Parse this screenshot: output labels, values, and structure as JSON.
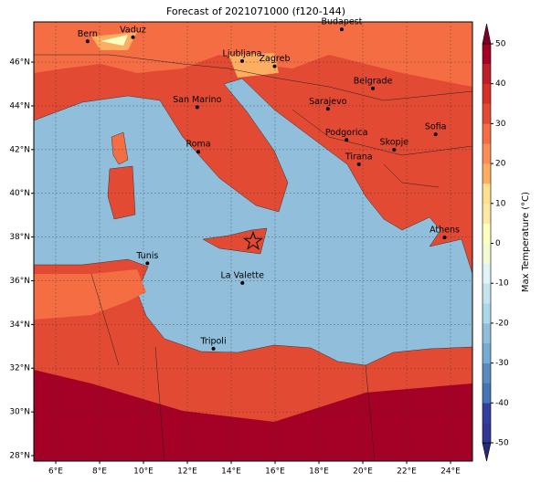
{
  "chart_data": {
    "type": "map",
    "title": "Forecast of 2021071000 (f120-144)",
    "colorbar_label": "Max Temperature (°C)",
    "xlim": [
      5,
      25
    ],
    "ylim": [
      27.75,
      47.84
    ],
    "xticks": [
      {
        "value": 6,
        "label": "6°E"
      },
      {
        "value": 8,
        "label": "8°E"
      },
      {
        "value": 10,
        "label": "10°E"
      },
      {
        "value": 12,
        "label": "12°E"
      },
      {
        "value": 14,
        "label": "14°E"
      },
      {
        "value": 16,
        "label": "16°E"
      },
      {
        "value": 18,
        "label": "18°E"
      },
      {
        "value": 20,
        "label": "20°E"
      },
      {
        "value": 22,
        "label": "22°E"
      },
      {
        "value": 24,
        "label": "24°E"
      }
    ],
    "yticks": [
      {
        "value": 28,
        "label": "28°N"
      },
      {
        "value": 30,
        "label": "30°N"
      },
      {
        "value": 32,
        "label": "32°N"
      },
      {
        "value": 34,
        "label": "34°N"
      },
      {
        "value": 36,
        "label": "36°N"
      },
      {
        "value": 38,
        "label": "38°N"
      },
      {
        "value": 40,
        "label": "40°N"
      },
      {
        "value": 42,
        "label": "42°N"
      },
      {
        "value": 44,
        "label": "44°N"
      },
      {
        "value": 46,
        "label": "46°N"
      }
    ],
    "grid": true,
    "cbar_lim": [
      -50,
      50
    ],
    "cbar_ticks": [
      -50,
      -40,
      -30,
      -20,
      -10,
      0,
      10,
      20,
      30,
      40,
      50
    ],
    "colors": [
      "#313695",
      "#343e9c",
      "#4575b4",
      "#5b8ac0",
      "#74add1",
      "#91bfdb",
      "#abd9e9",
      "#c6e4ef",
      "#e0f3f8",
      "#f4fbd2",
      "#ffffbf",
      "#fee8a5",
      "#fee090",
      "#fdae61",
      "#fc8d59",
      "#f46d43",
      "#e34a33",
      "#d73027",
      "#bd1f2a",
      "#a50026"
    ],
    "under_color": "#262a7a",
    "over_color": "#7f0024",
    "cities": [
      {
        "name": "Bern",
        "lon": 7.45,
        "lat": 46.95
      },
      {
        "name": "Vaduz",
        "lon": 9.52,
        "lat": 47.14
      },
      {
        "name": "Budapest",
        "lon": 19.04,
        "lat": 47.5
      },
      {
        "name": "Ljubljana",
        "lon": 14.5,
        "lat": 46.05
      },
      {
        "name": "Zagreb",
        "lon": 15.98,
        "lat": 45.81
      },
      {
        "name": "Belgrade",
        "lon": 20.46,
        "lat": 44.8
      },
      {
        "name": "San Marino",
        "lon": 12.45,
        "lat": 43.94
      },
      {
        "name": "Sarajevo",
        "lon": 18.41,
        "lat": 43.86
      },
      {
        "name": "Sofia",
        "lon": 23.32,
        "lat": 42.7
      },
      {
        "name": "Roma",
        "lon": 12.5,
        "lat": 41.9
      },
      {
        "name": "Podgorica",
        "lon": 19.26,
        "lat": 42.44
      },
      {
        "name": "Skopje",
        "lon": 21.43,
        "lat": 41.99
      },
      {
        "name": "Tirana",
        "lon": 19.82,
        "lat": 41.33
      },
      {
        "name": "Athens",
        "lon": 23.73,
        "lat": 37.98
      },
      {
        "name": "Tunis",
        "lon": 10.18,
        "lat": 36.8
      },
      {
        "name": "La Valette",
        "lon": 14.51,
        "lat": 35.9
      },
      {
        "name": "Tripoli",
        "lon": 13.19,
        "lat": 32.89
      }
    ],
    "marker": {
      "lon": 15.0,
      "lat": 37.8
    }
  }
}
